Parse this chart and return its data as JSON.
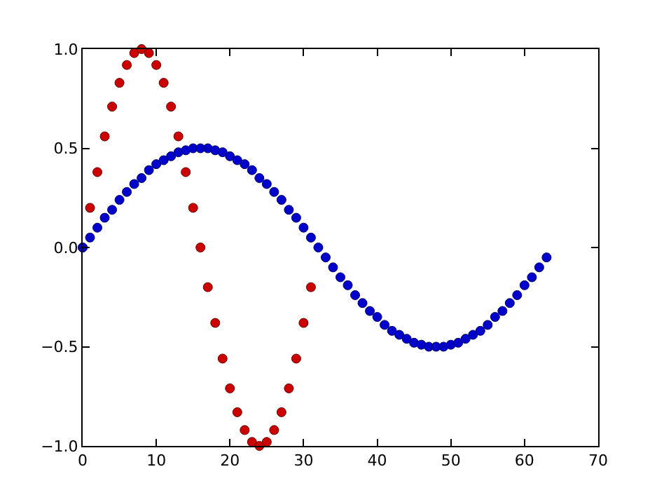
{
  "chart_data": {
    "type": "scatter",
    "xlim": [
      0,
      70
    ],
    "ylim": [
      -1.0,
      1.0
    ],
    "xticks": [
      0,
      10,
      20,
      30,
      40,
      50,
      60,
      70
    ],
    "yticks": [
      {
        "value": -1,
        "label": "−1.0"
      },
      {
        "value": -0.5,
        "label": "−0.5"
      },
      {
        "value": 0,
        "label": "0.0"
      },
      {
        "value": 0.5,
        "label": "0.5"
      },
      {
        "value": 1,
        "label": "1.0"
      }
    ],
    "marker": "circle",
    "series": [
      {
        "color": "#0000cc",
        "x": [
          0,
          1,
          2,
          3,
          4,
          5,
          6,
          7,
          8,
          9,
          10,
          11,
          12,
          13,
          14,
          15,
          16,
          17,
          18,
          19,
          20,
          21,
          22,
          23,
          24,
          25,
          26,
          27,
          28,
          29,
          30,
          31,
          32,
          33,
          34,
          35,
          36,
          37,
          38,
          39,
          40,
          41,
          42,
          43,
          44,
          45,
          46,
          47,
          48,
          49,
          50,
          51,
          52,
          53,
          54,
          55,
          56,
          57,
          58,
          59,
          60,
          61,
          62,
          63
        ],
        "values": [
          0,
          0.05,
          0.1,
          0.15,
          0.19,
          0.24,
          0.28,
          0.32,
          0.35,
          0.39,
          0.42,
          0.44,
          0.46,
          0.48,
          0.49,
          0.5,
          0.5,
          0.5,
          0.49,
          0.48,
          0.46,
          0.44,
          0.42,
          0.39,
          0.35,
          0.32,
          0.28,
          0.24,
          0.19,
          0.15,
          0.1,
          0.05,
          0,
          -0.05,
          -0.1,
          -0.15,
          -0.19,
          -0.24,
          -0.28,
          -0.32,
          -0.35,
          -0.39,
          -0.42,
          -0.44,
          -0.46,
          -0.48,
          -0.49,
          -0.5,
          -0.5,
          -0.5,
          -0.49,
          -0.48,
          -0.46,
          -0.44,
          -0.42,
          -0.39,
          -0.35,
          -0.32,
          -0.28,
          -0.24,
          -0.19,
          -0.15,
          -0.1,
          -0.05
        ]
      },
      {
        "color": "#cc0000",
        "x": [
          0,
          1,
          2,
          3,
          4,
          5,
          6,
          7,
          8,
          9,
          10,
          11,
          12,
          13,
          14,
          15,
          16,
          17,
          18,
          19,
          20,
          21,
          22,
          23,
          24,
          25,
          26,
          27,
          28,
          29,
          30,
          31
        ],
        "values": [
          0,
          0.2,
          0.38,
          0.56,
          0.71,
          0.83,
          0.92,
          0.98,
          1.0,
          0.98,
          0.92,
          0.83,
          0.71,
          0.56,
          0.38,
          0.2,
          0,
          -0.2,
          -0.38,
          -0.56,
          -0.71,
          -0.83,
          -0.92,
          -0.98,
          -1.0,
          -0.98,
          -0.92,
          -0.83,
          -0.71,
          -0.56,
          -0.38,
          -0.2
        ]
      }
    ]
  }
}
